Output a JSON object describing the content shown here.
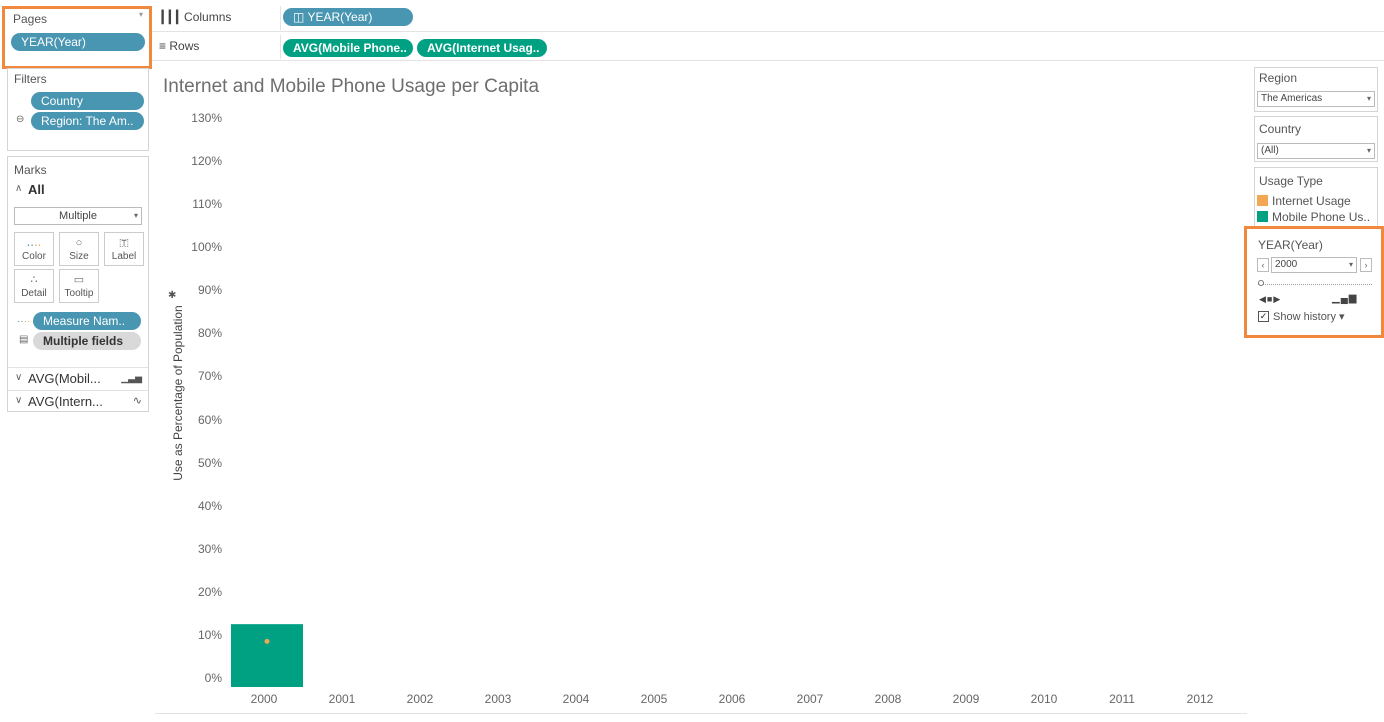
{
  "shelves": {
    "pages": {
      "title": "Pages",
      "pill": "YEAR(Year)"
    },
    "columns": {
      "label": "Columns",
      "pill": "◫ YEAR(Year)"
    },
    "rows": {
      "label": "Rows",
      "pills": [
        "AVG(Mobile Phone..",
        "AVG(Internet Usag.."
      ]
    }
  },
  "filters": {
    "title": "Filters",
    "items": [
      "Country",
      "Region: The Am.."
    ]
  },
  "marks": {
    "title": "Marks",
    "all_label": "All",
    "mark_type": "Multiple",
    "buttons": [
      "Color",
      "Size",
      "Label",
      "Detail",
      "Tooltip"
    ],
    "fields": [
      "Measure Nam..",
      "Multiple fields"
    ],
    "cards": [
      "AVG(Mobil...",
      "AVG(Intern..."
    ]
  },
  "chart_data": {
    "type": "bar",
    "title": "Internet and Mobile Phone Usage per Capita",
    "ylabel": "Use as Percentage of Population",
    "xlabel": "",
    "categories": [
      "2000",
      "2001",
      "2002",
      "2003",
      "2004",
      "2005",
      "2006",
      "2007",
      "2008",
      "2009",
      "2010",
      "2011",
      "2012"
    ],
    "yticks": [
      "130%",
      "120%",
      "110%",
      "100%",
      "90%",
      "80%",
      "70%",
      "60%",
      "50%",
      "40%",
      "30%",
      "20%",
      "10%",
      "0%"
    ],
    "ylim": [
      0,
      130
    ],
    "series": [
      {
        "name": "Mobile Phone Usage",
        "mark": "bar",
        "color": "#00a083",
        "values": [
          12.5,
          null,
          null,
          null,
          null,
          null,
          null,
          null,
          null,
          null,
          null,
          null,
          null
        ]
      },
      {
        "name": "Internet Usage",
        "mark": "line",
        "color": "#f3a654",
        "values": [
          8.5,
          null,
          null,
          null,
          null,
          null,
          null,
          null,
          null,
          null,
          null,
          null,
          null
        ]
      }
    ]
  },
  "right_panel": {
    "region": {
      "title": "Region",
      "value": "The Americas"
    },
    "country": {
      "title": "Country",
      "value": "(All)"
    },
    "legend": {
      "title": "Usage Type",
      "items": [
        {
          "label": "Internet Usage",
          "color": "#f3a654"
        },
        {
          "label": "Mobile Phone Us..",
          "color": "#00a083"
        }
      ]
    },
    "page_control": {
      "title": "YEAR(Year)",
      "value": "2000",
      "show_history_label": "Show history ▾",
      "show_history_checked": true
    }
  },
  "colors": {
    "highlight": "#f0883e",
    "pill_blue": "#4996b2",
    "pill_green": "#00a083"
  }
}
